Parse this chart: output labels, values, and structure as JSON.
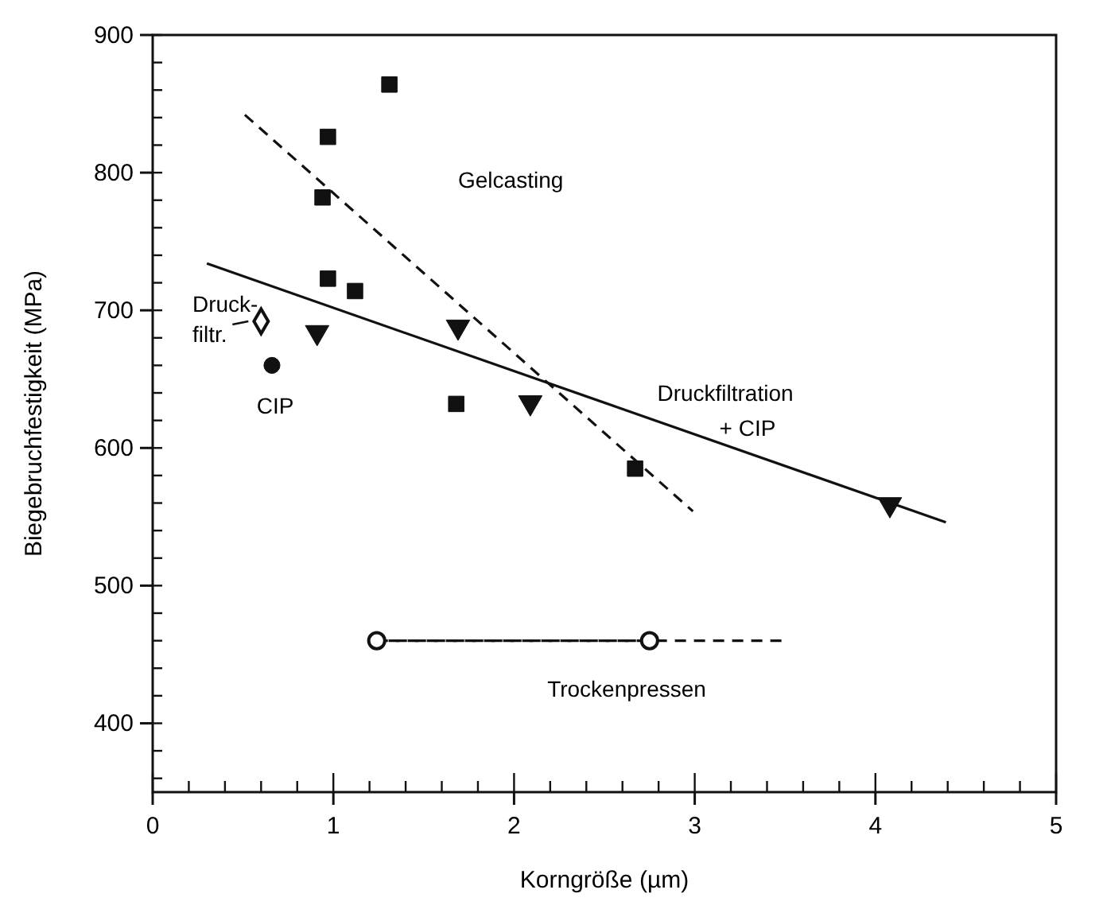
{
  "chart_data": {
    "type": "scatter",
    "xlabel": "Korngröße (µm)",
    "ylabel": "Biegebruchfestigkeit (MPa)",
    "xlim": [
      0,
      5
    ],
    "ylim": [
      350,
      900
    ],
    "xticks": [
      0,
      1,
      2,
      3,
      4,
      5
    ],
    "yticks": [
      400,
      500,
      600,
      700,
      800,
      900
    ],
    "series": [
      {
        "marker": "square",
        "color": "#111111",
        "x": [
          1.31,
          0.97,
          0.94,
          0.97,
          1.12,
          1.68,
          2.67
        ],
        "values": [
          864,
          826,
          782,
          723,
          714,
          632,
          585
        ]
      },
      {
        "marker": "triangle",
        "color": "#111111",
        "x": [
          0.91,
          1.69,
          2.09,
          4.08
        ],
        "values": [
          684,
          688,
          633,
          559
        ]
      },
      {
        "marker": "circle",
        "color": "#111111",
        "x": [
          0.66
        ],
        "values": [
          660
        ]
      },
      {
        "marker": "diamond",
        "color": "#111111",
        "x": [
          0.6
        ],
        "values": [
          692
        ]
      },
      {
        "type": "line",
        "marker": "none",
        "line_style": "dashed",
        "color": "#111111",
        "x": [
          1.2,
          3.5
        ],
        "values": [
          460,
          460
        ]
      },
      {
        "type": "line",
        "marker": "circle",
        "line_style": "dashed",
        "color": "#111111",
        "x": [
          1.24,
          2.75
        ],
        "values": [
          460,
          460
        ]
      },
      {
        "type": "line",
        "marker": "none",
        "line_style": "solid",
        "color": "#111111",
        "x": [
          0.3,
          4.39
        ],
        "values": [
          734,
          546
        ]
      },
      {
        "type": "line",
        "marker": "none",
        "line_style": "dashed",
        "color": "#111111",
        "x": [
          0.51,
          2.99
        ],
        "values": [
          842,
          554
        ]
      }
    ],
    "annotations": [
      "Gelcasting",
      "Druckfiltration",
      "+ CIP",
      "Druck-",
      "filtr.",
      "CIP",
      "Trockenpressen"
    ]
  }
}
